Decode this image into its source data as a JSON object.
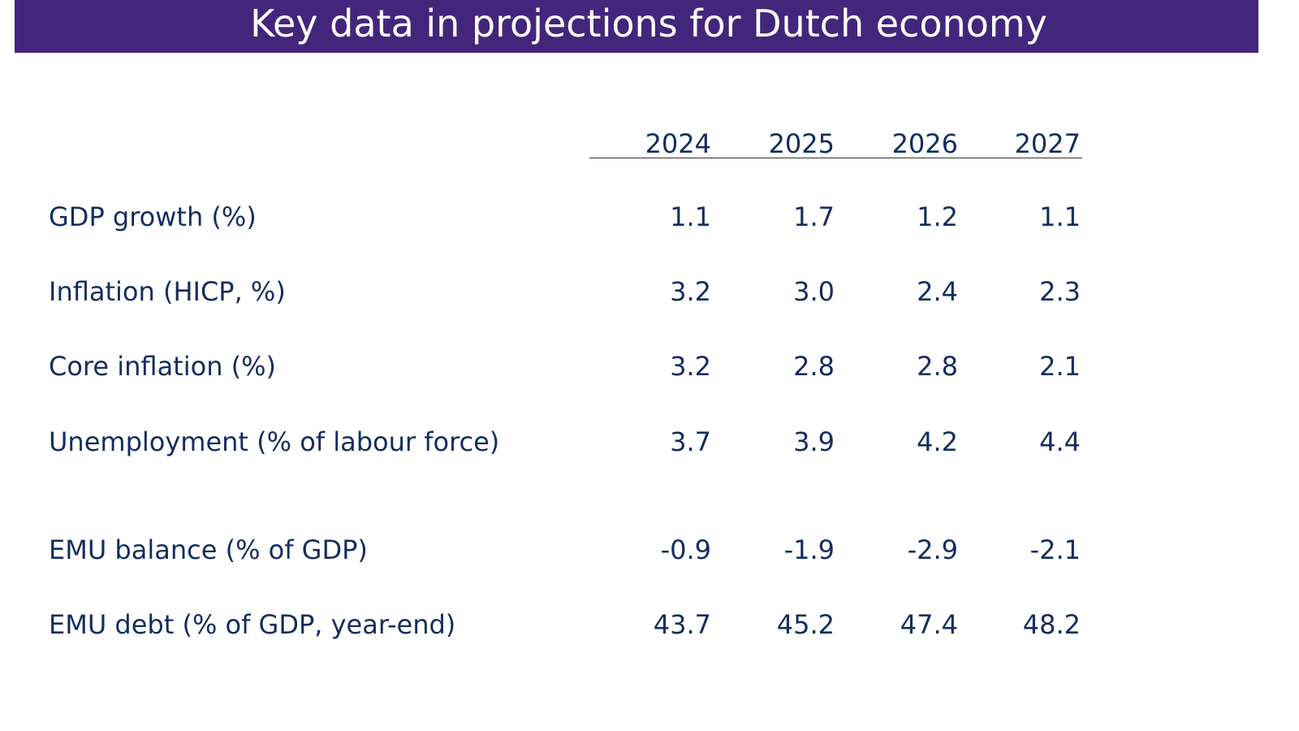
{
  "header": {
    "title": "Key data in projections for Dutch economy",
    "bar_color": "#43267c",
    "text_color": "#142d5e"
  },
  "table": {
    "columns": [
      "2024",
      "2025",
      "2026",
      "2027"
    ],
    "rows": [
      {
        "label": "GDP growth (%)",
        "values": [
          "1.1",
          "1.7",
          "1.2",
          "1.1"
        ]
      },
      {
        "label": "Inflation (HICP, %)",
        "values": [
          "3.2",
          "3.0",
          "2.4",
          "2.3"
        ]
      },
      {
        "label": "Core inflation (%)",
        "values": [
          "3.2",
          "2.8",
          "2.8",
          "2.1"
        ]
      },
      {
        "label": "Unemployment (% of labour force)",
        "values": [
          "3.7",
          "3.9",
          "4.2",
          "4.4"
        ]
      },
      {
        "label": "EMU balance (% of GDP)",
        "values": [
          "-0.9",
          "-1.9",
          "-2.9",
          "-2.1"
        ]
      },
      {
        "label": "EMU debt (% of GDP, year-end)",
        "values": [
          "43.7",
          "45.2",
          "47.4",
          "48.2"
        ]
      }
    ]
  }
}
